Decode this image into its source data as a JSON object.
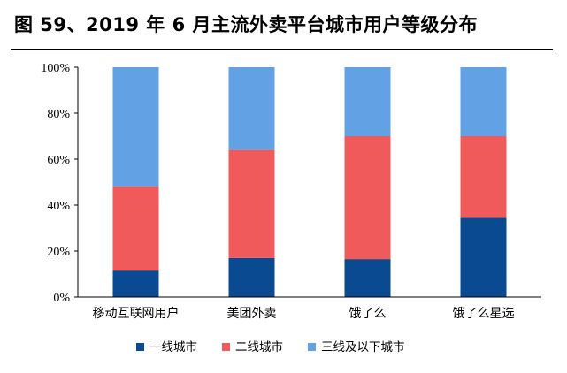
{
  "title": "图 59、2019 年 6 月主流外卖平台城市用户等级分布",
  "chart_data": {
    "type": "bar",
    "stacked": true,
    "categories": [
      "移动互联网用户",
      "美团外卖",
      "饿了么",
      "饿了么星选"
    ],
    "series": [
      {
        "name": "一线城市",
        "color": "#0a4a91",
        "values": [
          11.5,
          17,
          16.5,
          34.5
        ]
      },
      {
        "name": "二线城市",
        "color": "#f05a5b",
        "values": [
          36.5,
          47,
          53.5,
          35.5
        ]
      },
      {
        "name": "三线及以下城市",
        "color": "#62a2e4",
        "values": [
          52,
          36,
          30,
          30
        ]
      }
    ],
    "yticks": [
      "0%",
      "20%",
      "40%",
      "60%",
      "80%",
      "100%"
    ],
    "ylim": [
      0,
      100
    ],
    "legend_position": "bottom",
    "grid": false
  }
}
